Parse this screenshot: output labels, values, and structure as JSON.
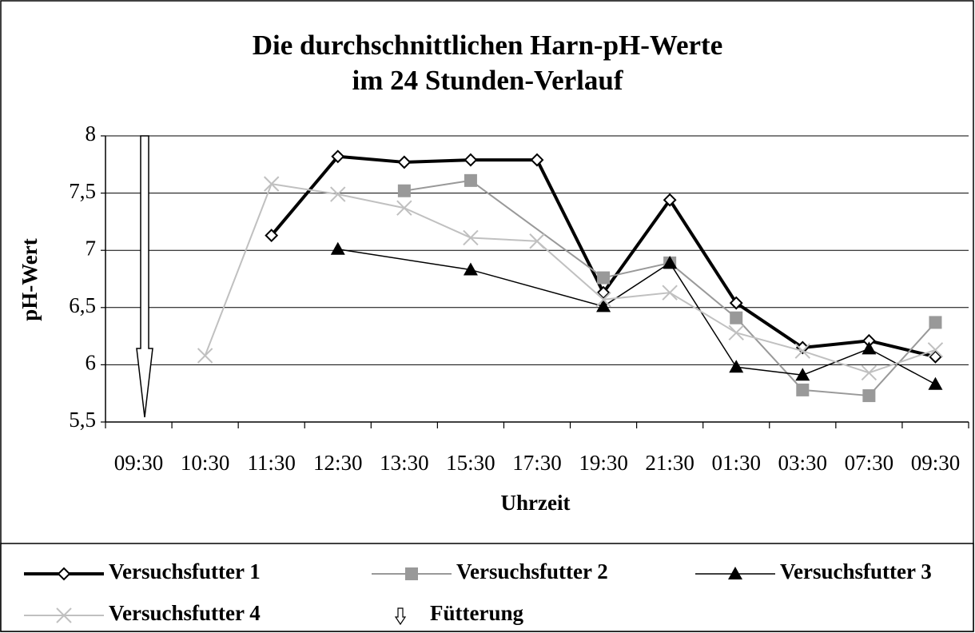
{
  "chart_data": {
    "type": "line",
    "title": [
      "Die durchschnittlichen Harn-pH-Werte",
      "im 24 Stunden-Verlauf"
    ],
    "x_label": "Uhrzeit",
    "y_label": "pH-Wert",
    "categories": [
      "09:30",
      "10:30",
      "11:30",
      "12:30",
      "13:30",
      "15:30",
      "17:30",
      "19:30",
      "21:30",
      "01:30",
      "03:30",
      "07:30",
      "09:30"
    ],
    "series": [
      {
        "name": "Versuchsfutter 1",
        "color": "#000000",
        "marker": "diamond",
        "values": [
          null,
          null,
          7.13,
          7.82,
          7.77,
          7.79,
          7.79,
          6.63,
          7.44,
          6.54,
          6.15,
          6.21,
          6.07
        ]
      },
      {
        "name": "Versuchsfutter 2",
        "color": "#999999",
        "marker": "square",
        "values": [
          null,
          null,
          null,
          null,
          7.52,
          7.61,
          null,
          6.76,
          6.89,
          6.41,
          5.78,
          5.73,
          6.37
        ]
      },
      {
        "name": "Versuchsfutter 3",
        "color": "#000000",
        "marker": "triangle",
        "values": [
          null,
          null,
          null,
          7.01,
          null,
          6.83,
          null,
          6.51,
          6.89,
          5.98,
          5.91,
          6.14,
          5.83
        ]
      },
      {
        "name": "Versuchsfutter 4",
        "color": "#c0c0c0",
        "marker": "x",
        "values": [
          null,
          6.08,
          7.58,
          7.49,
          7.37,
          7.11,
          7.08,
          6.57,
          6.63,
          6.28,
          6.12,
          5.93,
          6.13
        ]
      }
    ],
    "feeding_label": "Fütterung",
    "ylim": [
      5.5,
      8
    ],
    "yticks": [
      {
        "value": 5.5,
        "label": "5,5"
      },
      6,
      {
        "value": 6.5,
        "label": "6,5"
      },
      7,
      {
        "value": 7.5,
        "label": "7,5"
      },
      8
    ],
    "grid": true
  }
}
